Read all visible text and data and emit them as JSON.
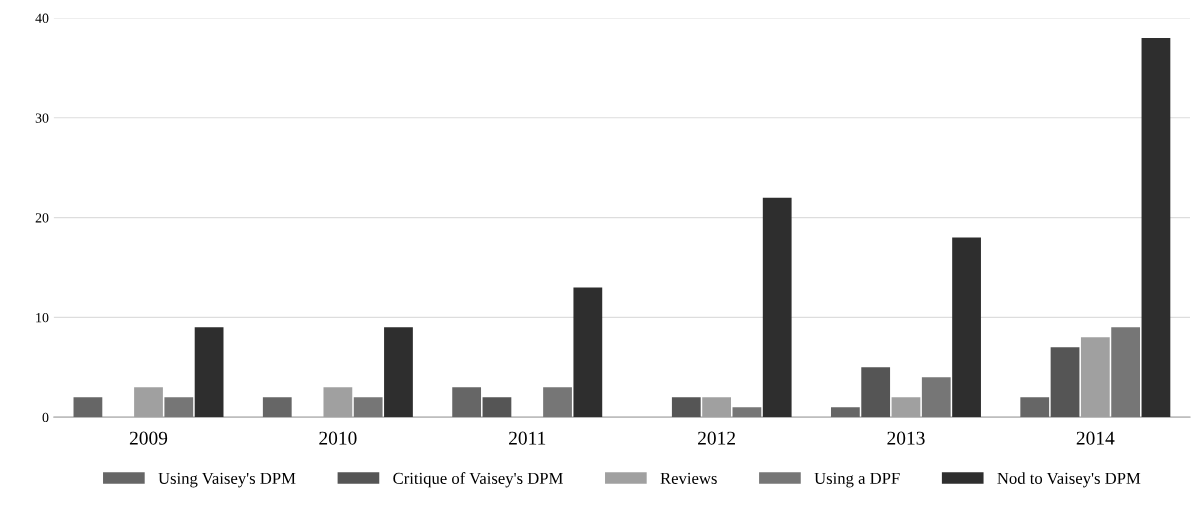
{
  "chart_data": {
    "type": "bar",
    "categories": [
      "2009",
      "2010",
      "2011",
      "2012",
      "2013",
      "2014"
    ],
    "series": [
      {
        "name": "Using Vaisey's DPM",
        "color": "#666666",
        "values": [
          2,
          2,
          3,
          0,
          1,
          2
        ]
      },
      {
        "name": "Critique of Vaisey's DPM",
        "color": "#555555",
        "values": [
          0,
          0,
          2,
          2,
          5,
          7
        ]
      },
      {
        "name": "Reviews",
        "color": "#a0a0a0",
        "values": [
          3,
          3,
          0,
          2,
          2,
          8
        ]
      },
      {
        "name": "Using a DPF",
        "color": "#767676",
        "values": [
          2,
          2,
          3,
          1,
          4,
          9
        ]
      },
      {
        "name": "Nod to Vaisey's DPM",
        "color": "#2e2e2e",
        "values": [
          9,
          9,
          13,
          22,
          18,
          38
        ]
      }
    ],
    "ylim": [
      0,
      40
    ],
    "yticks": [
      0,
      10,
      20,
      30,
      40
    ],
    "grid": "y",
    "legend": "bottom"
  }
}
